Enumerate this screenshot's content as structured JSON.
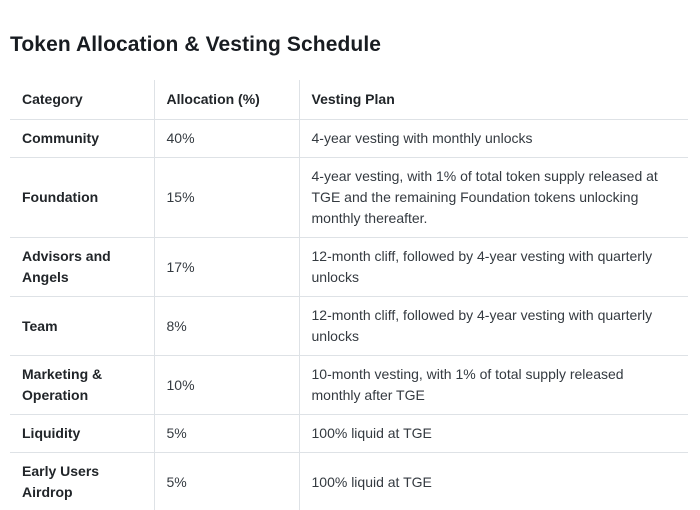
{
  "page": {
    "title": "Token Allocation & Vesting Schedule"
  },
  "table": {
    "columns": [
      "Category",
      "Allocation (%)",
      "Vesting Plan"
    ],
    "rows": [
      {
        "category": "Community",
        "allocation": "40%",
        "vesting": "4-year vesting with monthly unlocks"
      },
      {
        "category": "Foundation",
        "allocation": "15%",
        "vesting": "4-year vesting, with 1% of total token supply released at TGE and the remaining Foundation tokens unlocking monthly thereafter."
      },
      {
        "category": "Advisors and Angels",
        "allocation": "17%",
        "vesting": "12-month cliff, followed by 4-year vesting with quarterly unlocks"
      },
      {
        "category": "Team",
        "allocation": "8%",
        "vesting": "12-month cliff, followed by 4-year vesting with quarterly unlocks"
      },
      {
        "category": "Marketing & Operation",
        "allocation": "10%",
        "vesting": "10-month vesting, with 1% of total supply released monthly after TGE"
      },
      {
        "category": "Liquidity",
        "allocation": "5%",
        "vesting": "100% liquid at TGE"
      },
      {
        "category": "Early Users Airdrop",
        "allocation": "5%",
        "vesting": "100% liquid at TGE"
      }
    ]
  },
  "colors": {
    "title": "#181c21",
    "header_text": "#212529",
    "body_text": "#343a40",
    "border": "#dee2e6",
    "background": "#ffffff"
  }
}
